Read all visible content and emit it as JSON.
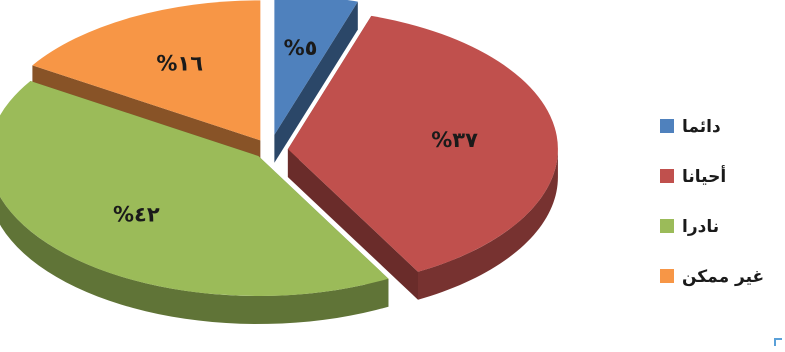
{
  "chart_data": {
    "type": "pie",
    "variant": "3d-exploded",
    "categories": [
      "دائما",
      "أحيانا",
      "نادرا",
      "غير ممكن"
    ],
    "values": [
      5,
      37,
      42,
      16
    ],
    "labels": [
      "%٥",
      "%٣٧",
      "%٤٢",
      "%١٦"
    ],
    "colors": [
      "#4f81bd",
      "#c0504d",
      "#9bbb59",
      "#f79646"
    ],
    "legend_position": "right",
    "title": ""
  }
}
